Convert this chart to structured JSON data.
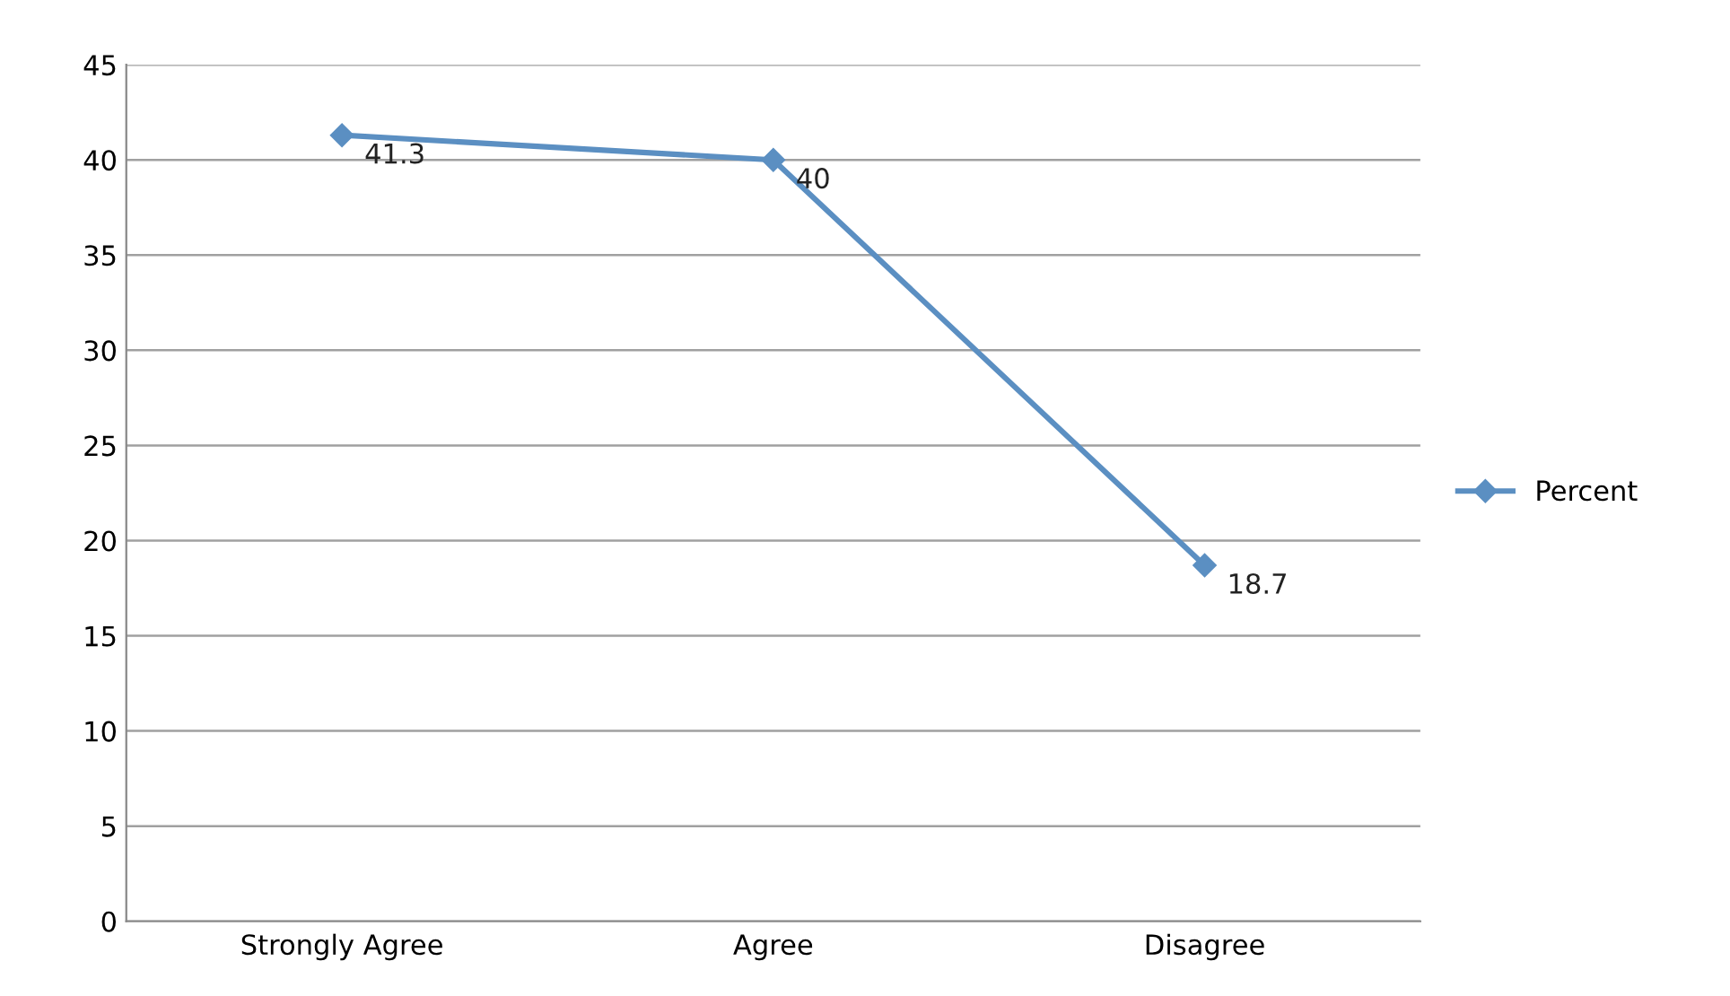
{
  "chart_data": {
    "type": "line",
    "categories": [
      "Strongly Agree",
      "Agree",
      "Disagree"
    ],
    "series": [
      {
        "name": "Percent",
        "color": "#5b8fc2",
        "values": [
          41.3,
          40,
          18.7
        ]
      }
    ],
    "ylim": [
      0,
      45
    ],
    "yticks": [
      0,
      5,
      10,
      15,
      20,
      25,
      30,
      35,
      40,
      45
    ],
    "grid": "y",
    "legend": "right",
    "marker": "diamond",
    "data_labels": true
  }
}
